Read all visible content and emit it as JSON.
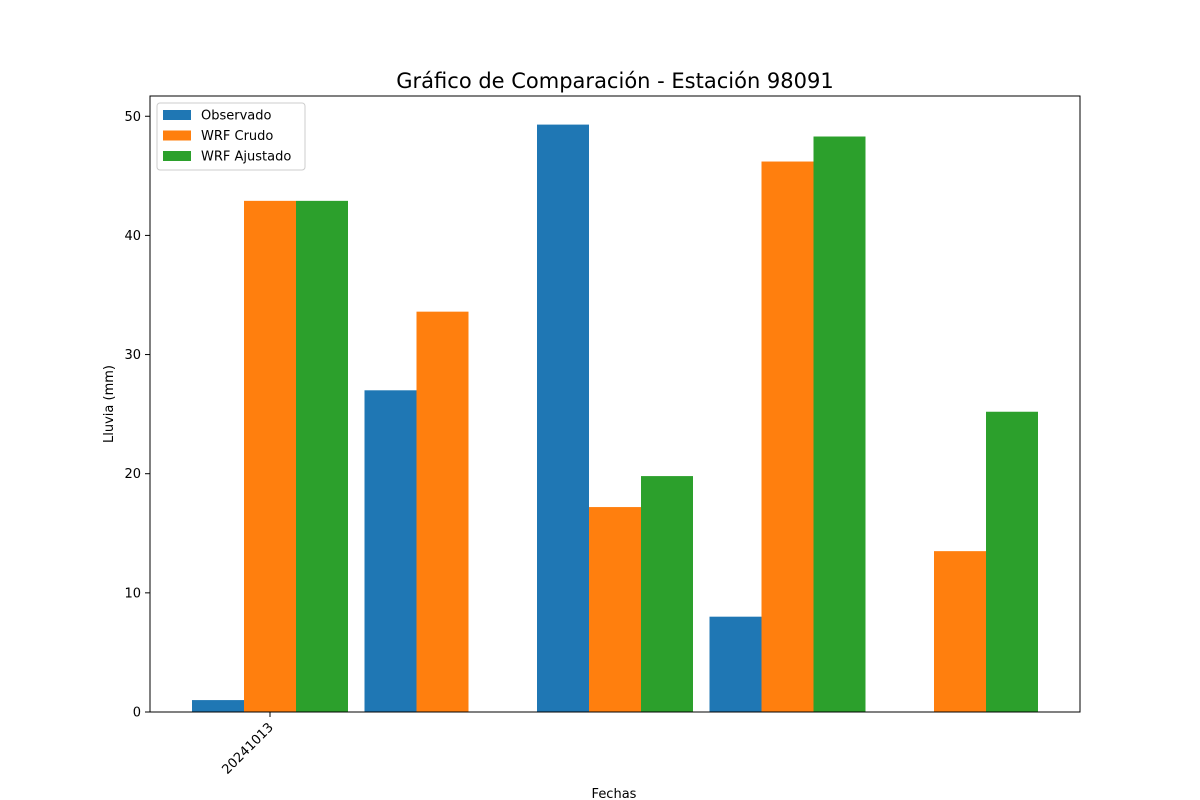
{
  "chart_data": {
    "type": "bar",
    "title": "Gráfico de Comparación - Estación 98091",
    "xlabel": "Fechas",
    "ylabel": "Lluvia (mm)",
    "ylim": [
      0,
      51.7
    ],
    "yticks": [
      0,
      10,
      20,
      30,
      40,
      50
    ],
    "xtick_labels": [
      "20241013"
    ],
    "legend_position": "top-left",
    "grid": false,
    "bar_groups": [
      {
        "bars": [
          {
            "series": 0,
            "value": 1.0
          },
          {
            "series": 1,
            "value": 42.9
          },
          {
            "series": 2,
            "value": 42.9
          }
        ]
      },
      {
        "bars": [
          {
            "series": 0,
            "value": 27.0
          },
          {
            "series": 1,
            "value": 33.6
          }
        ]
      },
      {
        "bars": [
          {
            "series": 0,
            "value": 49.3
          },
          {
            "series": 1,
            "value": 17.2
          },
          {
            "series": 2,
            "value": 19.8
          }
        ]
      },
      {
        "bars": [
          {
            "series": 0,
            "value": 8.0
          },
          {
            "series": 1,
            "value": 46.2
          },
          {
            "series": 2,
            "value": 48.3
          }
        ]
      },
      {
        "bars": [
          {
            "series": 1,
            "value": 13.5
          },
          {
            "series": 2,
            "value": 25.2
          }
        ]
      }
    ],
    "series": [
      {
        "name": "Observado",
        "color": "#1f77b4"
      },
      {
        "name": "WRF Crudo",
        "color": "#ff7f0e"
      },
      {
        "name": "WRF Ajustado",
        "color": "#2ca02c"
      }
    ]
  }
}
